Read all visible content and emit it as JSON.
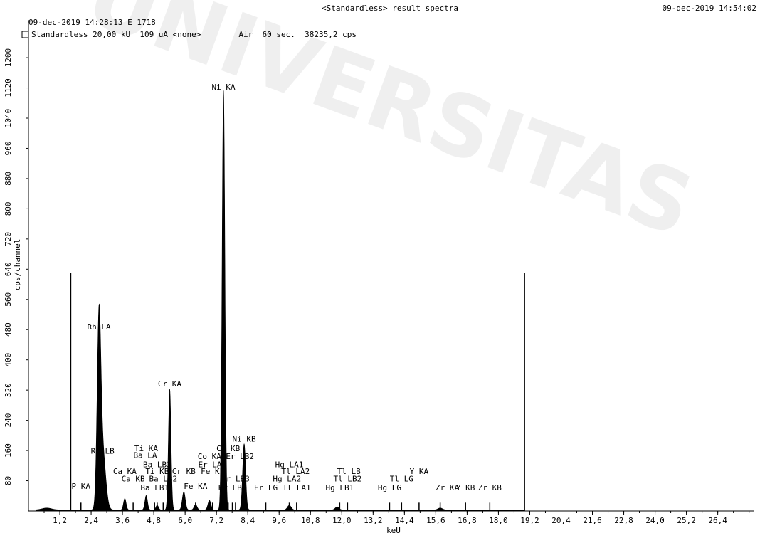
{
  "header": {
    "title": "<Standardless> result spectra",
    "date_right": "09-dec-2019 14:54:02",
    "line1": "09-dec-2019 14:28:13 E 1718",
    "line2": "Standardless 20,00 kU  109 uA <none>        Air  60 sec.  38235,2 cps"
  },
  "watermark": "UNIVERSITAS",
  "chart_data": {
    "type": "line",
    "xlabel": "keU",
    "ylabel": "cps/channel",
    "xlim": [
      0,
      27.8
    ],
    "ylim": [
      0,
      1300
    ],
    "xticks": [
      1.2,
      2.4,
      3.6,
      4.8,
      6.0,
      7.2,
      8.4,
      9.6,
      10.8,
      12.0,
      13.2,
      14.4,
      15.6,
      16.8,
      18.0,
      19.2,
      20.4,
      21.6,
      22.8,
      24.0,
      25.2,
      26.4
    ],
    "xtick_labels": [
      "1,2",
      "2,4",
      "3,6",
      "4,8",
      "6,0",
      "7,2",
      "8,4",
      "9,6",
      "10,8",
      "12,0",
      "13,2",
      "14,4",
      "15,6",
      "16,8",
      "18,0",
      "19,2",
      "20,4",
      "21,6",
      "22,8",
      "24,0",
      "25,2",
      "26,4"
    ],
    "yticks": [
      80,
      160,
      240,
      320,
      400,
      480,
      560,
      640,
      720,
      800,
      880,
      960,
      1040,
      1120,
      1200
    ],
    "ytick_labels": [
      "80",
      "160",
      "240",
      "320",
      "400",
      "480",
      "560",
      "640",
      "720",
      "800",
      "880",
      "960",
      "1040",
      "1120",
      "1200"
    ],
    "markers": [
      {
        "x": 1.62,
        "y": 630
      },
      {
        "x": 19.0,
        "y": 630
      }
    ],
    "peaks": [
      {
        "x": 2.7,
        "height": 470,
        "width": 0.1
      },
      {
        "x": 2.84,
        "height": 155,
        "width": 0.16
      },
      {
        "x": 3.69,
        "height": 30,
        "width": 0.07
      },
      {
        "x": 4.51,
        "height": 38,
        "width": 0.07
      },
      {
        "x": 4.93,
        "height": 12,
        "width": 0.07
      },
      {
        "x": 5.41,
        "height": 320,
        "width": 0.07
      },
      {
        "x": 5.95,
        "height": 48,
        "width": 0.08
      },
      {
        "x": 6.4,
        "height": 14,
        "width": 0.08
      },
      {
        "x": 6.93,
        "height": 25,
        "width": 0.08
      },
      {
        "x": 7.47,
        "height": 1110,
        "width": 0.075
      },
      {
        "x": 8.26,
        "height": 175,
        "width": 0.08
      },
      {
        "x": 9.99,
        "height": 12,
        "width": 0.1
      },
      {
        "x": 11.82,
        "height": 8,
        "width": 0.1
      },
      {
        "x": 15.77,
        "height": 5,
        "width": 0.12
      }
    ],
    "labels": [
      {
        "text": "Ni KA",
        "x": 7.47,
        "y": 1115
      },
      {
        "text": "Rh LA",
        "x": 2.7,
        "y": 480
      },
      {
        "text": "Cr KA",
        "x": 5.41,
        "y": 330
      },
      {
        "text": "Rh LB",
        "x": 2.84,
        "y": 152
      },
      {
        "text": "Ni KB",
        "x": 8.26,
        "y": 184
      },
      {
        "text": "Co KB",
        "x": 7.65,
        "y": 158
      },
      {
        "text": "Co KA",
        "x": 6.93,
        "y": 138
      },
      {
        "text": "Er LB2",
        "x": 8.1,
        "y": 138
      },
      {
        "text": "Ti KA",
        "x": 4.51,
        "y": 158
      },
      {
        "text": "Ba LA",
        "x": 4.47,
        "y": 140
      },
      {
        "text": "Ba LB3",
        "x": 4.93,
        "y": 116
      },
      {
        "text": "Er LA",
        "x": 6.95,
        "y": 116
      },
      {
        "text": "Hg LA1",
        "x": 9.99,
        "y": 116
      },
      {
        "text": "Ca KA",
        "x": 3.69,
        "y": 98
      },
      {
        "text": "Ti KB",
        "x": 4.93,
        "y": 98
      },
      {
        "text": "Cr KB",
        "x": 5.95,
        "y": 98
      },
      {
        "text": "Fe KB",
        "x": 7.05,
        "y": 98
      },
      {
        "text": "Tl LA2",
        "x": 10.23,
        "y": 98
      },
      {
        "text": "Tl LB",
        "x": 12.27,
        "y": 98
      },
      {
        "text": "Y KA",
        "x": 14.96,
        "y": 98
      },
      {
        "text": "Ca KB",
        "x": 4.01,
        "y": 78
      },
      {
        "text": "Ba LB2",
        "x": 5.16,
        "y": 78
      },
      {
        "text": "Er LB3",
        "x": 7.93,
        "y": 78
      },
      {
        "text": "Hg LA2",
        "x": 9.9,
        "y": 78
      },
      {
        "text": "Tl LB2",
        "x": 12.22,
        "y": 78
      },
      {
        "text": "Tl LG",
        "x": 14.29,
        "y": 78
      },
      {
        "text": "P KA",
        "x": 2.01,
        "y": 58
      },
      {
        "text": "Fe KA",
        "x": 6.4,
        "y": 58
      },
      {
        "text": "Ba LB1",
        "x": 4.83,
        "y": 55
      },
      {
        "text": "Er LB1",
        "x": 7.81,
        "y": 55
      },
      {
        "text": "Er LG",
        "x": 9.09,
        "y": 55
      },
      {
        "text": "Tl LA1",
        "x": 10.27,
        "y": 55
      },
      {
        "text": "Hg LB1",
        "x": 11.92,
        "y": 55
      },
      {
        "text": "Hg LG",
        "x": 13.83,
        "y": 55
      },
      {
        "text": "Zr KA",
        "x": 16.04,
        "y": 55
      },
      {
        "text": "Y KB",
        "x": 16.74,
        "y": 55
      },
      {
        "text": "Zr KB",
        "x": 17.67,
        "y": 55
      }
    ],
    "line_markers": [
      2.01,
      3.69,
      4.01,
      4.51,
      4.83,
      4.93,
      5.16,
      5.41,
      5.95,
      6.4,
      6.93,
      7.05,
      7.47,
      7.65,
      7.81,
      7.93,
      8.26,
      9.09,
      9.99,
      10.27,
      11.92,
      12.22,
      13.83,
      14.29,
      14.96,
      15.77,
      16.74,
      17.67
    ]
  }
}
